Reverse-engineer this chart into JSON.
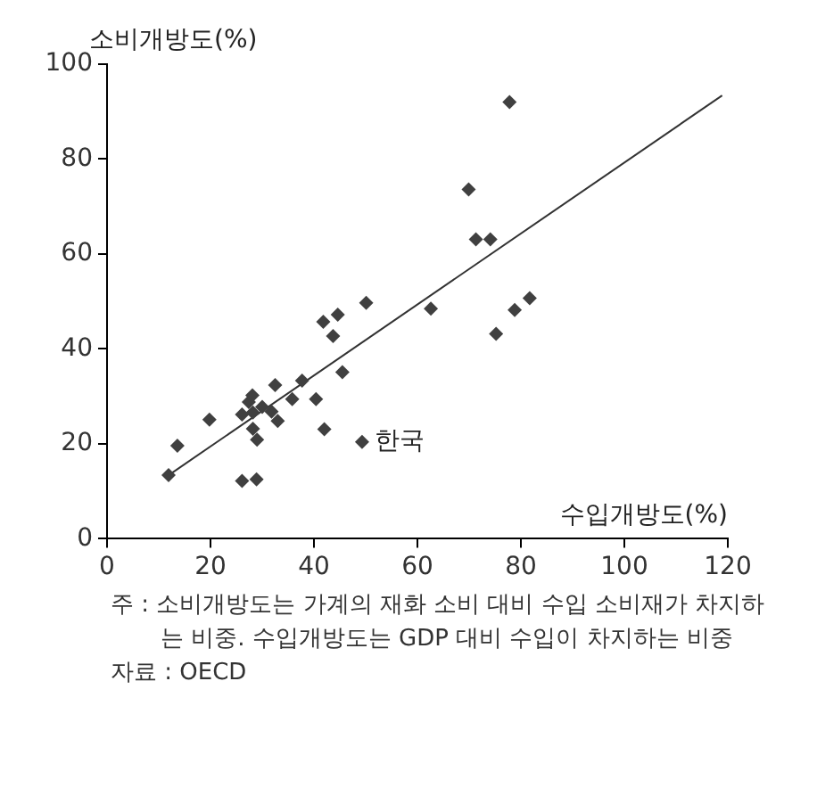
{
  "chart_data": {
    "type": "scatter",
    "xlabel": "수입개방도(%)",
    "ylabel": "소비개방도(%)",
    "x": [
      11.9,
      13.6,
      19.8,
      26.1,
      28.9,
      26.1,
      27.4,
      28.1,
      28.2,
      28.2,
      29.0,
      30.0,
      31.8,
      33.0,
      32.5,
      35.8,
      37.7,
      40.4,
      42.0,
      41.8,
      44.6,
      43.7,
      45.5,
      50.1,
      49.3,
      62.6,
      69.9,
      71.3,
      74.1,
      77.8,
      75.2,
      78.8,
      81.7
    ],
    "series": [
      {
        "color": "#404040",
        "values": [
          13.4,
          19.6,
          25.1,
          12.2,
          12.5,
          26.2,
          28.8,
          30.2,
          26.6,
          23.2,
          20.9,
          27.8,
          26.8,
          24.8,
          32.4,
          29.4,
          33.3,
          29.4,
          23.1,
          45.7,
          47.2,
          42.7,
          35.1,
          49.7,
          20.4,
          48.5,
          73.6,
          63.1,
          63.1,
          92.0,
          43.2,
          48.2,
          50.7
        ]
      },
      {
        "type": "line",
        "color": "#333333",
        "x": [
          11.9,
          118.9
        ],
        "values": [
          13.4,
          93.4
        ],
        "marker": "none"
      }
    ],
    "marker": "diamond",
    "xlim": [
      0,
      120
    ],
    "xticks": [
      0,
      20,
      40,
      60,
      80,
      100,
      120
    ],
    "ylim": [
      0,
      100
    ],
    "yticks": [
      0,
      20,
      40,
      60,
      80,
      100
    ],
    "grid": false,
    "legend": false,
    "annotations": [
      {
        "text": "한국",
        "x": 49.3,
        "y": 20.4
      },
      "주 : 소비개방도는 가계의 재화 소비 대비 수입 소비재가 차지하는 비중. 수입개방도는 GDP 대비 수입이 차지하는 비중",
      "자료 : OECD"
    ]
  }
}
